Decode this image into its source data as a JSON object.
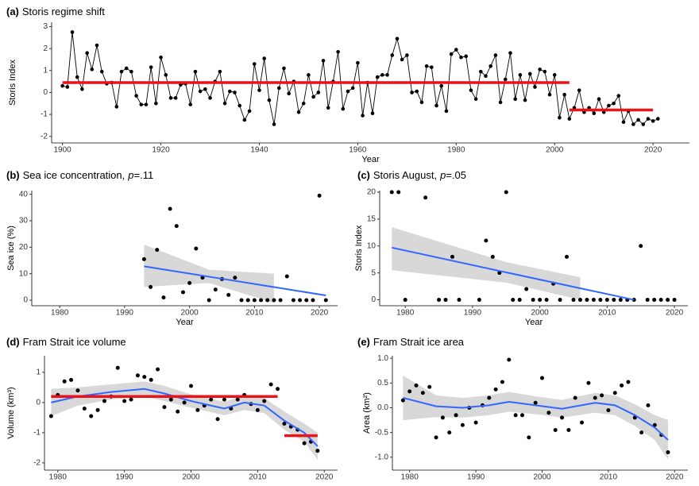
{
  "chart_data": [
    {
      "type": "line",
      "label": "(a)",
      "title": "Storis regime shift",
      "xlabel": "Year",
      "ylabel": "Storis Index",
      "color": "#000000",
      "segment_color": "#e8141a",
      "x": [
        1900,
        1901,
        1902,
        1903,
        1904,
        1905,
        1906,
        1907,
        1908,
        1909,
        1910,
        1911,
        1912,
        1913,
        1914,
        1915,
        1916,
        1917,
        1918,
        1919,
        1920,
        1921,
        1922,
        1923,
        1924,
        1925,
        1926,
        1927,
        1928,
        1929,
        1930,
        1931,
        1932,
        1933,
        1934,
        1935,
        1936,
        1937,
        1938,
        1939,
        1940,
        1941,
        1942,
        1943,
        1944,
        1945,
        1946,
        1947,
        1948,
        1949,
        1950,
        1951,
        1952,
        1953,
        1954,
        1955,
        1956,
        1957,
        1958,
        1959,
        1960,
        1961,
        1962,
        1963,
        1964,
        1965,
        1966,
        1967,
        1968,
        1969,
        1970,
        1971,
        1972,
        1973,
        1974,
        1975,
        1976,
        1977,
        1978,
        1979,
        1980,
        1981,
        1982,
        1983,
        1984,
        1985,
        1986,
        1987,
        1988,
        1989,
        1990,
        1991,
        1992,
        1993,
        1994,
        1995,
        1996,
        1997,
        1998,
        1999,
        2000,
        2001,
        2002,
        2003,
        2004,
        2005,
        2006,
        2007,
        2008,
        2009,
        2010,
        2011,
        2012,
        2013,
        2014,
        2015,
        2016,
        2017,
        2018,
        2019,
        2020,
        2021
      ],
      "values": [
        0.3,
        0.25,
        2.75,
        0.7,
        0.15,
        1.8,
        1.05,
        2.15,
        0.95,
        0.4,
        0.45,
        -0.65,
        0.95,
        1.1,
        0.95,
        -0.15,
        -0.55,
        -0.55,
        1.15,
        -0.5,
        1.6,
        0.8,
        -0.25,
        -0.25,
        0.35,
        0.4,
        -0.55,
        0.95,
        0.05,
        0.15,
        -0.25,
        0.5,
        0.95,
        -0.5,
        0.05,
        0,
        -0.6,
        -1.25,
        -0.85,
        1.3,
        0.1,
        1.55,
        -0.35,
        -1.45,
        0.2,
        1.1,
        -0.05,
        0.5,
        -0.9,
        -0.5,
        0.8,
        -0.2,
        0,
        1.45,
        -0.7,
        0.5,
        1.85,
        -0.75,
        0.05,
        0.2,
        1.35,
        -1.05,
        0.45,
        -0.95,
        0.7,
        0.8,
        0.8,
        1.7,
        2.45,
        1.5,
        1.7,
        0,
        0.05,
        -0.45,
        1.2,
        1.15,
        -0.6,
        0.3,
        -0.85,
        1.75,
        1.95,
        1.6,
        1.65,
        0.1,
        -0.3,
        0.95,
        0.75,
        1.2,
        1.7,
        -0.45,
        0.6,
        1.8,
        -0.3,
        0.8,
        -0.35,
        0.85,
        0.25,
        1.05,
        0.95,
        -0.1,
        0.8,
        -1.15,
        -0.1,
        -1.2,
        -0.7,
        0.1,
        -0.9,
        -0.7,
        -0.95,
        -0.3,
        -0.9,
        -0.6,
        -0.5,
        -0.15,
        -1.35,
        -0.85,
        -1.45,
        -1.25,
        -1.45,
        -1.2,
        -1.3,
        -1.2
      ],
      "segments": [
        {
          "x": [
            1900,
            2003
          ],
          "y": 0.45
        },
        {
          "x": [
            2003,
            2020
          ],
          "y": -0.8
        }
      ],
      "xlim": [
        1897.8,
        2027.4
      ],
      "ylim": [
        -2.3,
        3.2
      ],
      "xticks": [
        1900,
        1920,
        1940,
        1960,
        1980,
        2000,
        2020
      ],
      "yticks": [
        -2,
        -1,
        0,
        1,
        2,
        3
      ]
    },
    {
      "type": "scatter",
      "label": "(b)",
      "title": "Sea ice concentration,",
      "stat_symbol": "p",
      "stat_value": "=.11",
      "xlabel": "Year",
      "ylabel": "Sea ice (%)",
      "color": "#000000",
      "trend_color": "#3366ff",
      "band_color": "#d4d4d4",
      "x": [
        1993,
        1994,
        1995,
        1996,
        1997,
        1998,
        1999,
        2000,
        2001,
        2002,
        2003,
        2004,
        2005,
        2006,
        2007,
        2008,
        2009,
        2010,
        2011,
        2012,
        2013,
        2014,
        2015,
        2016,
        2017,
        2018,
        2019,
        2020,
        2021
      ],
      "values": [
        15.5,
        5,
        19,
        1,
        34.5,
        28,
        3,
        6.5,
        19.5,
        8.5,
        0,
        4,
        8,
        2,
        8.5,
        0,
        0,
        0,
        0,
        0,
        0,
        0,
        9,
        0,
        0,
        0,
        0,
        39.5,
        0
      ],
      "trend": {
        "x": [
          1993,
          2003,
          2013,
          2021
        ],
        "values": [
          12.8,
          8.87,
          4.94,
          1.8
        ],
        "lower": [
          5,
          6.5,
          -1,
          null
        ],
        "upper": [
          21,
          11.5,
          10,
          null
        ]
      },
      "xlim": [
        1975.7,
        2022.8
      ],
      "ylim": [
        -2.1,
        41.4
      ],
      "xticks": [
        1980,
        1990,
        2000,
        2010,
        2020
      ],
      "yticks": [
        0,
        10,
        20,
        30,
        40
      ]
    },
    {
      "type": "scatter",
      "label": "(c)",
      "title": "Storis August,",
      "stat_symbol": "p",
      "stat_value": "=.05",
      "xlabel": "Year",
      "ylabel": "Storis Index",
      "color": "#000000",
      "trend_color": "#3366ff",
      "band_color": "#d4d4d4",
      "x": [
        1978,
        1979,
        1980,
        1983,
        1985,
        1986,
        1987,
        1988,
        1991,
        1992,
        1993,
        1994,
        1995,
        1996,
        1997,
        1998,
        1999,
        2000,
        2001,
        2002,
        2003,
        2004,
        2005,
        2006,
        2007,
        2008,
        2009,
        2010,
        2011,
        2012,
        2013,
        2014,
        2015,
        2016,
        2017,
        2018,
        2019,
        2020
      ],
      "values": [
        20,
        20,
        0,
        19,
        0,
        0,
        8,
        0,
        0,
        11,
        8,
        5,
        20,
        0,
        0,
        2,
        0,
        0,
        0,
        3,
        0,
        8,
        0,
        0,
        0,
        0,
        0,
        0,
        0,
        0,
        0,
        0,
        10,
        0,
        0,
        0,
        0,
        0
      ],
      "trend": {
        "x": [
          1978,
          1995,
          2006,
          2014
        ],
        "values": [
          9.7,
          5.1,
          2.15,
          0
        ],
        "lower": [
          5.5,
          3.2,
          0,
          null
        ],
        "upper": [
          13.5,
          7,
          4.2,
          null
        ]
      },
      "xlim": [
        1976.2,
        2022
      ],
      "ylim": [
        -1.1,
        20.3
      ],
      "xticks": [
        1980,
        1990,
        2000,
        2010,
        2020
      ],
      "yticks": [
        0,
        5,
        10,
        15,
        20
      ]
    },
    {
      "type": "scatter",
      "label": "(d)",
      "title": "Fram Strait ice volume",
      "ylabel": "Volume (km³)",
      "color": "#000000",
      "trend_color": "#3366ff",
      "band_color": "#d4d4d4",
      "segment_color": "#e8141a",
      "x": [
        1979,
        1980,
        1981,
        1982,
        1983,
        1984,
        1985,
        1986,
        1987,
        1988,
        1989,
        1990,
        1991,
        1992,
        1993,
        1994,
        1995,
        1996,
        1997,
        1998,
        1999,
        2000,
        2001,
        2002,
        2003,
        2004,
        2005,
        2006,
        2007,
        2008,
        2009,
        2010,
        2011,
        2012,
        2013,
        2014,
        2015,
        2016,
        2017,
        2018,
        2019
      ],
      "values": [
        -0.45,
        0.25,
        0.7,
        0.75,
        0.4,
        -0.2,
        -0.45,
        -0.25,
        0.05,
        0.2,
        1.15,
        0.05,
        0.1,
        0.9,
        0.85,
        0.75,
        1.1,
        -0.15,
        0.1,
        -0.3,
        0,
        0.55,
        -0.25,
        -0.1,
        0.1,
        -0.55,
        0.1,
        -0.2,
        0.1,
        0.25,
        -0.05,
        -0.25,
        0.05,
        0.6,
        0.45,
        -0.7,
        -0.8,
        -0.9,
        -1.35,
        -1.3,
        -1.6
      ],
      "trend": {
        "x": [
          1979,
          1983,
          1988,
          1993,
          1996,
          2000,
          2005,
          2008,
          2011,
          2014,
          2017,
          2019
        ],
        "values": [
          0,
          0.2,
          0.35,
          0.45,
          0.3,
          0.05,
          -0.2,
          0,
          -0.1,
          -0.6,
          -1,
          -1.45
        ],
        "lower": [
          -0.45,
          -0.1,
          0.1,
          0.2,
          0.05,
          -0.17,
          -0.42,
          -0.25,
          -0.35,
          -0.9,
          -1.3,
          -1.9
        ],
        "upper": [
          0.45,
          0.5,
          0.6,
          0.7,
          0.55,
          0.27,
          0.02,
          0.25,
          0.15,
          -0.3,
          -0.7,
          -1
        ]
      },
      "segments": [
        {
          "x": [
            1979,
            2013
          ],
          "y": 0.2
        },
        {
          "x": [
            2014,
            2019
          ],
          "y": -1.1
        }
      ],
      "xlim": [
        1978,
        2022
      ],
      "ylim": [
        -2.24,
        1.55
      ],
      "xticks": [
        1980,
        1990,
        2000,
        2010,
        2020
      ],
      "yticks": [
        -2,
        -1,
        0,
        1
      ]
    },
    {
      "type": "scatter",
      "label": "(e)",
      "title": "Fram Strait ice area",
      "ylabel": "Area (km²)",
      "color": "#000000",
      "trend_color": "#3366ff",
      "band_color": "#d4d4d4",
      "x": [
        1979,
        1980,
        1981,
        1982,
        1983,
        1984,
        1985,
        1986,
        1987,
        1988,
        1989,
        1990,
        1991,
        1992,
        1993,
        1994,
        1995,
        1996,
        1997,
        1998,
        1999,
        2000,
        2001,
        2002,
        2003,
        2004,
        2005,
        2006,
        2007,
        2008,
        2009,
        2010,
        2011,
        2012,
        2013,
        2014,
        2015,
        2016,
        2017,
        2018,
        2019
      ],
      "values": [
        0.15,
        0.33,
        0.45,
        0.3,
        0.42,
        -0.6,
        -0.2,
        -0.5,
        -0.15,
        -0.35,
        0,
        -0.3,
        0.05,
        0.2,
        0.37,
        0.52,
        0.97,
        -0.15,
        -0.15,
        -0.6,
        0.1,
        0.6,
        -0.1,
        -0.45,
        -0.2,
        -0.45,
        0.2,
        -0.3,
        0.5,
        0.2,
        0.25,
        -0.05,
        0.3,
        0.45,
        0.52,
        -0.2,
        -0.5,
        0.05,
        -0.35,
        -0.55,
        -0.9
      ],
      "trend": {
        "x": [
          1979,
          1984,
          1988,
          1992,
          1995,
          1999,
          2003,
          2008,
          2011,
          2014,
          2017,
          2019
        ],
        "values": [
          0.2,
          0.03,
          0,
          0.05,
          0.12,
          0.05,
          -0.02,
          0.1,
          0.05,
          -0.15,
          -0.4,
          -0.65
        ],
        "lower": [
          -0.25,
          -0.19,
          -0.2,
          -0.15,
          -0.08,
          -0.13,
          -0.2,
          -0.1,
          -0.15,
          -0.37,
          -0.65,
          -1.05
        ],
        "upper": [
          0.65,
          0.25,
          0.2,
          0.25,
          0.32,
          0.23,
          0.16,
          0.3,
          0.25,
          0.07,
          -0.15,
          -0.25
        ]
      },
      "xlim": [
        1977.4,
        2022
      ],
      "ylim": [
        -1.26,
        1.05
      ],
      "xticks": [
        1980,
        1990,
        2000,
        2010,
        2020
      ],
      "yticks": [
        {
          "value": -1,
          "label": "-1.0"
        },
        {
          "value": -0.5,
          "label": "-0.5"
        },
        {
          "value": 0,
          "label": "0.0"
        },
        {
          "value": 0.5,
          "label": "0.5"
        },
        {
          "value": 1,
          "label": "1.0"
        }
      ]
    }
  ]
}
